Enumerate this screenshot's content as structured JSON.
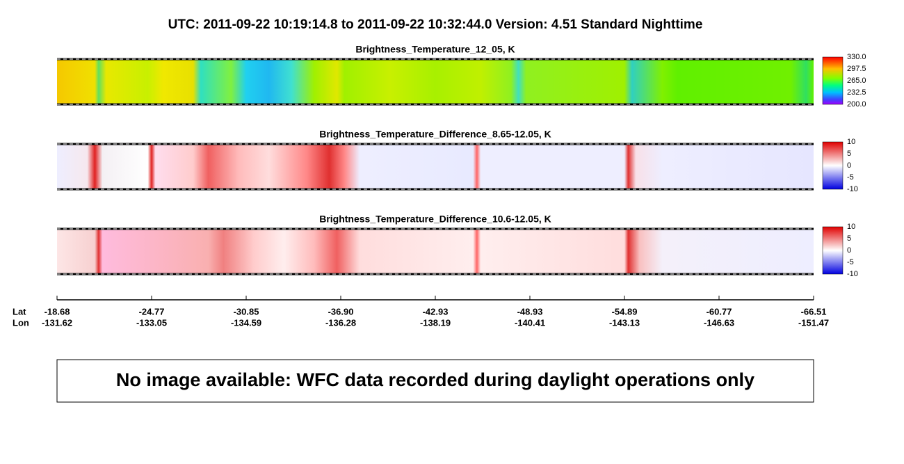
{
  "header": {
    "title": "UTC:  2011-09-22   10:19:14.8  to  2011-09-22   10:32:44.0    Version: 4.51  Standard Nighttime"
  },
  "panels": [
    {
      "title": "Brightness_Temperature_12_05, K",
      "colorbar_labels": [
        "330.0",
        "297.5",
        "265.0",
        "232.5",
        "200.0"
      ]
    },
    {
      "title": "Brightness_Temperature_Difference_8.65-12.05, K",
      "colorbar_labels": [
        "10",
        "5",
        "0",
        "-5",
        "-10"
      ]
    },
    {
      "title": "Brightness_Temperature_Difference_10.6-12.05, K",
      "colorbar_labels": [
        "10",
        "5",
        "0",
        "-5",
        "-10"
      ]
    }
  ],
  "axis": {
    "lat_label": "Lat",
    "lon_label": "Lon",
    "lat": [
      "-18.68",
      "-24.77",
      "-30.85",
      "-36.90",
      "-42.93",
      "-48.93",
      "-54.89",
      "-60.77",
      "-66.51"
    ],
    "lon": [
      "-131.62",
      "-133.05",
      "-134.59",
      "-136.28",
      "-138.19",
      "-140.41",
      "-143.13",
      "-146.63",
      "-151.47"
    ]
  },
  "notice": "No image available: WFC data recorded during daylight operations only"
}
